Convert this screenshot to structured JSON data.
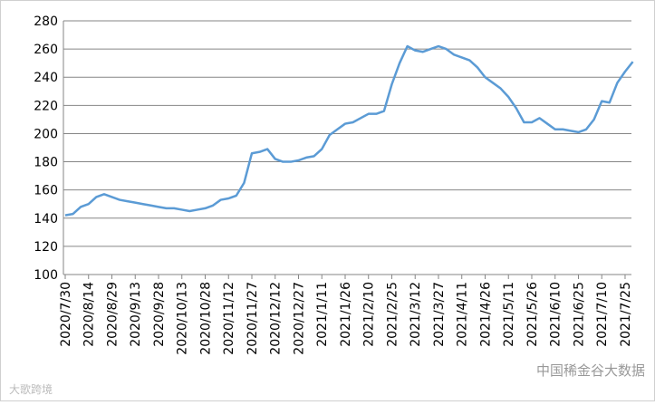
{
  "chart_data": {
    "type": "line",
    "categories": [
      "2020/7/30",
      null,
      null,
      "2020/8/14",
      null,
      null,
      "2020/8/29",
      null,
      null,
      "2020/9/13",
      null,
      null,
      "2020/9/28",
      null,
      null,
      "2020/10/13",
      null,
      null,
      "2020/10/28",
      null,
      null,
      "2020/11/12",
      null,
      null,
      "2020/11/27",
      null,
      null,
      "2020/12/12",
      null,
      null,
      "2020/12/27",
      null,
      null,
      "2021/1/11",
      null,
      null,
      "2021/1/26",
      null,
      null,
      "2021/2/10",
      null,
      null,
      "2021/2/25",
      null,
      null,
      "2021/3/12",
      null,
      null,
      "2021/3/27",
      null,
      null,
      "2021/4/11",
      null,
      null,
      "2021/4/26",
      null,
      null,
      "2021/5/11",
      null,
      null,
      "2021/5/26",
      null,
      null,
      "2021/6/10",
      null,
      null,
      "2021/6/25",
      null,
      null,
      "2021/7/10",
      null,
      null,
      "2021/7/25",
      null
    ],
    "values": [
      142,
      143,
      148,
      150,
      155,
      157,
      155,
      153,
      152,
      151,
      150,
      149,
      148,
      147,
      147,
      146,
      145,
      146,
      147,
      149,
      153,
      154,
      156,
      165,
      186,
      187,
      189,
      182,
      180,
      180,
      181,
      183,
      184,
      189,
      199,
      203,
      207,
      208,
      211,
      214,
      214,
      216,
      235,
      250,
      262,
      259,
      258,
      260,
      262,
      260,
      256,
      254,
      252,
      247,
      240,
      236,
      232,
      226,
      218,
      208,
      208,
      211,
      207,
      203,
      203,
      202,
      201,
      203,
      210,
      223,
      222,
      236,
      244,
      251
    ],
    "color": "#5b9bd5",
    "ylim": [
      100,
      280
    ],
    "yticks": [
      100,
      120,
      140,
      160,
      180,
      200,
      220,
      240,
      260,
      280
    ],
    "grid": true
  },
  "watermarks": [
    "大歌跨境",
    "中国稀金谷大数据"
  ]
}
